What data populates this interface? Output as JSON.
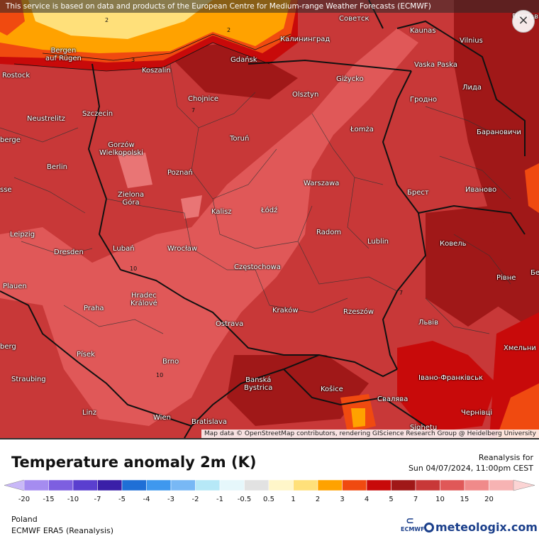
{
  "top_note": "This service is based on data and products of the European Centre for Medium-range Weather Forecasts (ECMWF)",
  "close_symbol": "×",
  "attribution": "Map data © OpenStreetMap contributors, rendering GIScience Research Group @ Heidelberg University",
  "title": "Temperature anomaly 2m (K)",
  "run_label": "Reanalysis for",
  "run_time": "Sun 04/07/2024, 11:00pm CEST",
  "region": "Poland",
  "model": "ECMWF ERA5 (Reanalysis)",
  "ecmwf_logo": "ECMWF",
  "meteologix_logo": "meteologix.com",
  "legend": {
    "ticks": [
      "-20",
      "-15",
      "-10",
      "-7",
      "-5",
      "-4",
      "-3",
      "-2",
      "-1",
      "-0.5",
      "0.5",
      "1",
      "2",
      "3",
      "4",
      "5",
      "7",
      "10",
      "15",
      "20"
    ],
    "colors": [
      "#a58cf0",
      "#7d5fe0",
      "#5a3fcf",
      "#3a1fa8",
      "#1f6fd6",
      "#3f98ee",
      "#78b8f5",
      "#b6e8f7",
      "#e6f7fb",
      "#e2e2e2",
      "#fff6c9",
      "#ffe07a",
      "#ffa200",
      "#f04a10",
      "#c80a0a",
      "#a01818",
      "#c83838",
      "#e05858",
      "#f08a8a",
      "#f7b3b3"
    ]
  },
  "contours": [
    "2",
    "2",
    "3",
    "7",
    "10",
    "10",
    "7"
  ],
  "cities": [
    {
      "name": "Kaliningrad-label",
      "text": "Калининград"
    },
    {
      "name": "Sovetsk",
      "text": "Советск"
    },
    {
      "name": "Kaunas",
      "text": "Kaunas"
    },
    {
      "name": "Vilnius",
      "text": "Vilnius"
    },
    {
      "name": "Bergen",
      "text": "Bergen\nauf Rügen"
    },
    {
      "name": "Rostock",
      "text": "Rostock"
    },
    {
      "name": "Koszalin",
      "text": "Koszalin"
    },
    {
      "name": "Gdansk",
      "text": "Gdańsk"
    },
    {
      "name": "Gizycko",
      "text": "Giżycko"
    },
    {
      "name": "VaskaPaska",
      "text": "Vaska Paska"
    },
    {
      "name": "Lida",
      "text": "Лида"
    },
    {
      "name": "Chojnice",
      "text": "Chojnice"
    },
    {
      "name": "Olsztyn",
      "text": "Olsztyn"
    },
    {
      "name": "Grodno",
      "text": "Гродно"
    },
    {
      "name": "Neustrelitz",
      "text": "Neustrelitz"
    },
    {
      "name": "Szczecin",
      "text": "Szczecin"
    },
    {
      "name": "Lomza",
      "text": "Łomża"
    },
    {
      "name": "Baranovichi",
      "text": "Барановичи"
    },
    {
      "name": "Eberge",
      "text": "berge"
    },
    {
      "name": "Torun",
      "text": "Toruń"
    },
    {
      "name": "Gorzow",
      "text": "Gorzów\nWielkopolski"
    },
    {
      "name": "Berlin",
      "text": "Berlin"
    },
    {
      "name": "Poznan",
      "text": "Poznań"
    },
    {
      "name": "Warszawa",
      "text": "Warszawa"
    },
    {
      "name": "Brest",
      "text": "Брест"
    },
    {
      "name": "Ivanovo",
      "text": "Иваново"
    },
    {
      "name": "Esse",
      "text": "sse"
    },
    {
      "name": "Zielona",
      "text": "Zielona\nGóra"
    },
    {
      "name": "Kalisz",
      "text": "Kalisz"
    },
    {
      "name": "Lodz",
      "text": "Łódź"
    },
    {
      "name": "Leipzig",
      "text": "Leipzig"
    },
    {
      "name": "Radom",
      "text": "Radom"
    },
    {
      "name": "Lublin",
      "text": "Lublin"
    },
    {
      "name": "Kovel",
      "text": "Ковель"
    },
    {
      "name": "Dresden",
      "text": "Dresden"
    },
    {
      "name": "Luban",
      "text": "Lubań"
    },
    {
      "name": "Wroclaw",
      "text": "Wrocław"
    },
    {
      "name": "Czestochowa",
      "text": "Częstochowa"
    },
    {
      "name": "Rivne",
      "text": "Рівне"
    },
    {
      "name": "Plauen",
      "text": "Plauen"
    },
    {
      "name": "Hradec",
      "text": "Hradec\nKrálové"
    },
    {
      "name": "Praha",
      "text": "Praha"
    },
    {
      "name": "Krakow",
      "text": "Kraków"
    },
    {
      "name": "Rzeszow",
      "text": "Rzeszów"
    },
    {
      "name": "Lviv",
      "text": "Львів"
    },
    {
      "name": "Ostrava",
      "text": "Ostrava"
    },
    {
      "name": "Eberg",
      "text": "berg"
    },
    {
      "name": "Khmelnyi",
      "text": "Хмельни"
    },
    {
      "name": "Pisek",
      "text": "Písek"
    },
    {
      "name": "Brno",
      "text": "Brno"
    },
    {
      "name": "BanskaBystrica",
      "text": "Banská\nBystrica"
    },
    {
      "name": "Straubing",
      "text": "Straubing"
    },
    {
      "name": "IvanoFrankivsk",
      "text": "Івано-Франківськ"
    },
    {
      "name": "Kosice",
      "text": "Košice"
    },
    {
      "name": "Svalyava",
      "text": "Свалява"
    },
    {
      "name": "Linz",
      "text": "Linz"
    },
    {
      "name": "Chernivtsi",
      "text": "Чернівці"
    },
    {
      "name": "Wien",
      "text": "Wien"
    },
    {
      "name": "Bratislava",
      "text": "Bratislava"
    },
    {
      "name": "Sighetu",
      "text": "Sighetu"
    },
    {
      "name": "Postav",
      "text": "Постав"
    },
    {
      "name": "Bel",
      "text": "Бел"
    }
  ]
}
